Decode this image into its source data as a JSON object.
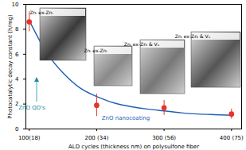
{
  "chart_data": {
    "type": "scatter",
    "x_label": "ALD cycles (thickness nm) on polysulfone fiber",
    "y_label": "Photocatalytic decay constant (h/mg)",
    "x": [
      100,
      200,
      300,
      400
    ],
    "values": [
      8.6,
      1.9,
      1.7,
      1.2
    ],
    "errors": [
      0.8,
      0.9,
      0.6,
      0.4
    ],
    "color": "#e8332a",
    "marker": "circle",
    "curve": {
      "type": "line",
      "color": "#1f5fb4",
      "x": [
        100,
        125,
        150,
        175,
        200,
        225,
        250,
        275,
        300,
        325,
        350,
        375,
        400
      ],
      "values": [
        8.7,
        6.2,
        4.5,
        3.3,
        2.6,
        2.1,
        1.8,
        1.6,
        1.45,
        1.3,
        1.2,
        1.15,
        1.1
      ]
    },
    "xlim": [
      95,
      415
    ],
    "xticks": [
      {
        "value": 100,
        "label": "100(18)"
      },
      {
        "value": 200,
        "label": "200 (34)"
      },
      {
        "value": 300,
        "label": "300 (56)"
      },
      {
        "value": 400,
        "label": "400 (75)"
      }
    ],
    "ylim": [
      0,
      10
    ],
    "yticks": [
      0,
      2,
      4,
      6,
      8,
      10
    ],
    "annotations": [
      {
        "text": "ZnO QD's",
        "color": "#1a8fa0"
      },
      {
        "text": "ZnO nanocoating",
        "color": "#1f5fb4"
      }
    ],
    "inset_labels": [
      "Znᵢ ex-Znᵢ",
      "Znᵢ ex-Znᵢ",
      "Znᵢ ex-Znᵢ & Vₒ",
      "Znᵢ ex-Znᵢ & Vₒ"
    ]
  }
}
